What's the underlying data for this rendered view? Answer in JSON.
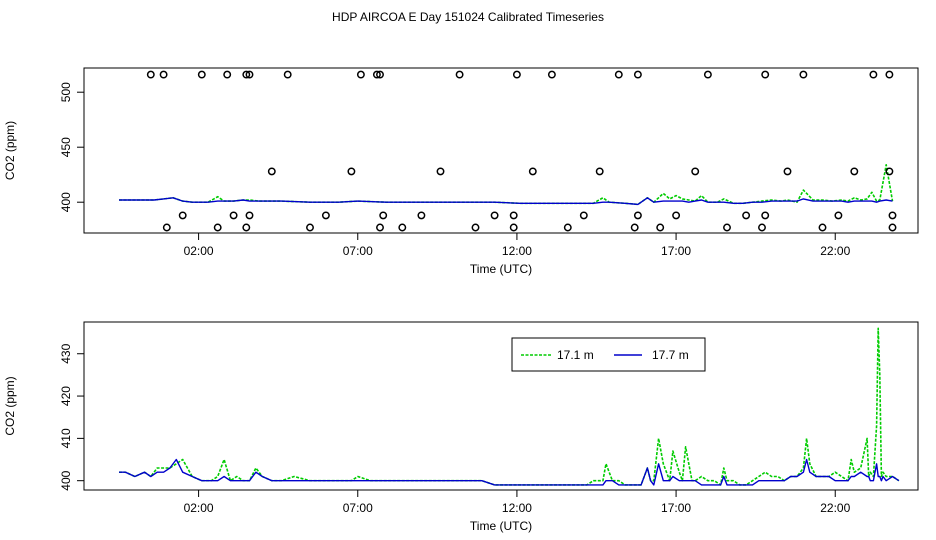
{
  "title": "HDP AIRCOA E  Day 151024  Calibrated Timeseries",
  "colors": {
    "green": "#00cc00",
    "blue": "#0000cc"
  },
  "chart_data": [
    {
      "type": "line",
      "panel": "top",
      "xlabel": "Time (UTC)",
      "ylabel": "CO2 (ppm)",
      "x_units": "hours",
      "xlim": [
        -1.6,
        24.6
      ],
      "ylim": [
        372,
        522
      ],
      "x_ticks": [
        2,
        7,
        12,
        17,
        22
      ],
      "x_tick_labels": [
        "02:00",
        "07:00",
        "12:00",
        "17:00",
        "22:00"
      ],
      "y_ticks": [
        400,
        450,
        500
      ],
      "y_tick_labels": [
        "400",
        "450",
        "500"
      ],
      "series": [
        {
          "color": "green",
          "dashed": true,
          "x": [
            -0.5,
            0.3,
            0.6,
            0.9,
            1.2,
            1.5,
            1.8,
            2.3,
            2.6,
            2.8,
            3.1,
            3.4,
            3.6,
            3.9,
            4.2,
            4.6,
            5.5,
            6.4,
            7.0,
            7.9,
            8.5,
            9.5,
            10.5,
            11.3,
            12.1,
            13.0,
            14.0,
            14.4,
            14.7,
            14.9,
            15.4,
            15.8,
            16.1,
            16.3,
            16.6,
            16.8,
            17.0,
            17.2,
            17.4,
            17.6,
            17.8,
            18.0,
            18.3,
            18.5,
            18.8,
            19.1,
            19.4,
            19.7,
            20.0,
            20.3,
            20.5,
            20.8,
            21.0,
            21.3,
            21.6,
            21.9,
            22.2,
            22.4,
            22.6,
            22.8,
            23.0,
            23.15,
            23.3,
            23.4,
            23.6,
            23.8
          ],
          "y": [
            402,
            402,
            402,
            403,
            404,
            401,
            400,
            400,
            405,
            401,
            401,
            402,
            402,
            401,
            401,
            401,
            400,
            400,
            401,
            400,
            400,
            400,
            400,
            400,
            399,
            399,
            399,
            399,
            404,
            400,
            399,
            398,
            404,
            400,
            408,
            403,
            406,
            403,
            402,
            401,
            406,
            400,
            400,
            403,
            399,
            399,
            400,
            401,
            402,
            401,
            402,
            400,
            411,
            402,
            402,
            401,
            402,
            401,
            404,
            402,
            403,
            409,
            401,
            402,
            434,
            401
          ]
        },
        {
          "color": "blue",
          "dashed": false,
          "x": [
            -0.5,
            0.3,
            0.6,
            0.9,
            1.2,
            1.5,
            1.8,
            2.3,
            2.6,
            2.8,
            3.1,
            3.4,
            3.6,
            3.9,
            4.2,
            4.6,
            5.5,
            6.4,
            7.0,
            7.9,
            8.5,
            9.5,
            10.5,
            11.3,
            12.1,
            13.0,
            14.0,
            14.4,
            14.7,
            14.9,
            15.4,
            15.8,
            16.1,
            16.3,
            16.6,
            16.8,
            17.0,
            17.2,
            17.4,
            17.6,
            17.8,
            18.0,
            18.3,
            18.5,
            18.8,
            19.1,
            19.4,
            19.7,
            20.0,
            20.3,
            20.5,
            20.8,
            21.0,
            21.3,
            21.6,
            21.9,
            22.2,
            22.4,
            22.6,
            22.8,
            23.0,
            23.15,
            23.3,
            23.4,
            23.6,
            23.8
          ],
          "y": [
            402,
            402,
            402,
            403,
            404,
            401,
            400,
            400,
            401,
            401,
            401,
            402,
            401,
            401,
            401,
            401,
            400,
            400,
            401,
            400,
            400,
            400,
            400,
            400,
            399,
            399,
            399,
            399,
            400,
            400,
            399,
            398,
            404,
            400,
            401,
            401,
            401,
            401,
            400,
            401,
            402,
            400,
            400,
            400,
            399,
            399,
            400,
            400,
            401,
            401,
            401,
            401,
            403,
            401,
            401,
            401,
            401,
            400,
            401,
            401,
            401,
            401,
            400,
            401,
            402,
            401
          ]
        }
      ],
      "markers": {
        "shape": "open-circle",
        "x": [
          0.5,
          0.9,
          2.1,
          2.9,
          3.5,
          3.6,
          4.8,
          7.1,
          7.6,
          7.7,
          10.2,
          12.0,
          13.1,
          15.2,
          15.8,
          18.0,
          19.8,
          21.0,
          23.2,
          23.7,
          1.0,
          1.5,
          2.6,
          3.1,
          3.5,
          3.6,
          4.3,
          5.5,
          6.0,
          6.8,
          7.7,
          7.8,
          8.4,
          9.0,
          9.6,
          10.7,
          11.3,
          11.9,
          11.9,
          12.5,
          13.6,
          14.1,
          14.6,
          15.7,
          15.8,
          16.5,
          17.0,
          17.6,
          18.6,
          19.2,
          19.7,
          19.8,
          20.5,
          21.6,
          22.1,
          22.6,
          23.7,
          23.8,
          23.8
        ],
        "y": [
          516,
          516,
          516,
          516,
          516,
          516,
          516,
          516,
          516,
          516,
          516,
          516,
          516,
          516,
          516,
          516,
          516,
          516,
          516,
          516,
          377,
          388,
          377,
          388,
          377,
          388,
          428,
          377,
          388,
          428,
          377,
          388,
          377,
          388,
          428,
          377,
          388,
          377,
          388,
          428,
          377,
          388,
          428,
          377,
          388,
          377,
          388,
          428,
          377,
          388,
          377,
          388,
          428,
          377,
          388,
          428,
          428,
          388,
          377
        ]
      }
    },
    {
      "type": "line",
      "panel": "bottom",
      "xlabel": "Time (UTC)",
      "ylabel": "CO2 (ppm)",
      "x_units": "hours",
      "xlim": [
        -1.6,
        24.6
      ],
      "ylim": [
        397.8,
        437.5
      ],
      "x_ticks": [
        2,
        7,
        12,
        17,
        22
      ],
      "x_tick_labels": [
        "02:00",
        "07:00",
        "12:00",
        "17:00",
        "22:00"
      ],
      "y_ticks": [
        400,
        410,
        420,
        430
      ],
      "y_tick_labels": [
        "400",
        "410",
        "420",
        "430"
      ],
      "legend": {
        "position": "top-right",
        "entries": [
          "17.1 m",
          "17.7 m"
        ]
      },
      "series": [
        {
          "name": "17.1 m",
          "color": "green",
          "dashed": true,
          "x": [
            -0.5,
            -0.3,
            0.0,
            0.3,
            0.5,
            0.7,
            0.9,
            1.1,
            1.3,
            1.5,
            1.8,
            2.1,
            2.4,
            2.6,
            2.8,
            3.0,
            3.2,
            3.4,
            3.6,
            3.8,
            4.0,
            4.3,
            4.6,
            5.0,
            5.5,
            6.0,
            6.4,
            6.8,
            7.0,
            7.4,
            7.9,
            8.5,
            9.0,
            9.5,
            10.0,
            10.5,
            10.9,
            11.3,
            11.7,
            12.1,
            12.6,
            13.0,
            13.5,
            14.0,
            14.2,
            14.4,
            14.5,
            14.7,
            14.8,
            15.0,
            15.2,
            15.4,
            15.6,
            15.8,
            15.9,
            16.1,
            16.2,
            16.3,
            16.45,
            16.6,
            16.8,
            16.9,
            17.1,
            17.2,
            17.3,
            17.5,
            17.6,
            17.8,
            18.0,
            18.2,
            18.4,
            18.5,
            18.6,
            18.8,
            19.0,
            19.2,
            19.4,
            19.6,
            19.8,
            20.0,
            20.2,
            20.4,
            20.6,
            20.8,
            21.0,
            21.1,
            21.2,
            21.4,
            21.6,
            21.8,
            22.0,
            22.2,
            22.4,
            22.5,
            22.6,
            22.8,
            23.0,
            23.05,
            23.1,
            23.2,
            23.3,
            23.35,
            23.4,
            23.45,
            23.5,
            23.6,
            23.8,
            24.0
          ],
          "y": [
            402,
            402,
            401,
            402,
            401,
            403,
            403,
            403,
            404,
            405,
            401,
            400,
            400,
            401,
            405,
            400,
            401,
            400,
            400,
            403,
            401,
            400,
            400,
            401,
            400,
            400,
            400,
            400,
            401,
            400,
            400,
            400,
            400,
            400,
            400,
            400,
            400,
            399,
            399,
            399,
            399,
            399,
            399,
            399,
            399,
            400,
            400,
            400,
            404,
            400,
            400,
            399,
            399,
            399,
            399,
            403,
            400,
            400,
            410,
            404,
            400,
            407,
            402,
            400,
            408,
            400,
            400,
            401,
            400,
            400,
            399,
            403,
            400,
            400,
            399,
            399,
            400,
            401,
            402,
            401,
            401,
            400,
            401,
            401,
            403,
            410,
            404,
            401,
            401,
            401,
            402,
            401,
            400,
            405,
            402,
            403,
            410,
            401,
            402,
            401,
            413,
            436,
            425,
            401,
            402,
            401,
            401,
            400
          ]
        },
        {
          "name": "17.7 m",
          "color": "blue",
          "dashed": false,
          "x": [
            -0.5,
            -0.3,
            0.0,
            0.3,
            0.5,
            0.7,
            0.9,
            1.1,
            1.3,
            1.5,
            1.8,
            2.1,
            2.4,
            2.6,
            2.8,
            3.0,
            3.2,
            3.4,
            3.6,
            3.8,
            4.0,
            4.3,
            4.6,
            5.0,
            5.5,
            6.0,
            6.4,
            6.8,
            7.0,
            7.4,
            7.9,
            8.5,
            9.0,
            9.5,
            10.0,
            10.5,
            10.9,
            11.3,
            11.7,
            12.1,
            12.6,
            13.0,
            13.5,
            14.0,
            14.2,
            14.4,
            14.5,
            14.7,
            14.8,
            15.0,
            15.2,
            15.4,
            15.6,
            15.8,
            15.9,
            16.1,
            16.2,
            16.3,
            16.45,
            16.6,
            16.8,
            16.9,
            17.1,
            17.2,
            17.3,
            17.5,
            17.6,
            17.8,
            18.0,
            18.2,
            18.4,
            18.5,
            18.6,
            18.8,
            19.0,
            19.2,
            19.4,
            19.6,
            19.8,
            20.0,
            20.2,
            20.4,
            20.6,
            20.8,
            21.0,
            21.1,
            21.2,
            21.4,
            21.6,
            21.8,
            22.0,
            22.2,
            22.4,
            22.5,
            22.6,
            22.8,
            23.0,
            23.05,
            23.1,
            23.2,
            23.3,
            23.35,
            23.4,
            23.45,
            23.5,
            23.6,
            23.8,
            24.0
          ],
          "y": [
            402,
            402,
            401,
            402,
            401,
            402,
            402,
            403,
            405,
            402,
            401,
            400,
            400,
            400,
            401,
            400,
            400,
            400,
            400,
            402,
            401,
            400,
            400,
            400,
            400,
            400,
            400,
            400,
            400,
            400,
            400,
            400,
            400,
            400,
            400,
            400,
            400,
            399,
            399,
            399,
            399,
            399,
            399,
            399,
            399,
            399,
            399,
            399,
            400,
            400,
            399,
            399,
            399,
            399,
            399,
            403,
            400,
            399,
            404,
            400,
            400,
            401,
            400,
            400,
            400,
            400,
            400,
            399,
            399,
            399,
            399,
            401,
            399,
            399,
            399,
            399,
            399,
            400,
            400,
            400,
            400,
            400,
            401,
            401,
            402,
            405,
            402,
            401,
            401,
            401,
            400,
            400,
            400,
            401,
            401,
            402,
            401,
            401,
            400,
            400,
            404,
            401,
            401,
            400,
            401,
            400,
            401,
            400
          ]
        }
      ]
    }
  ]
}
